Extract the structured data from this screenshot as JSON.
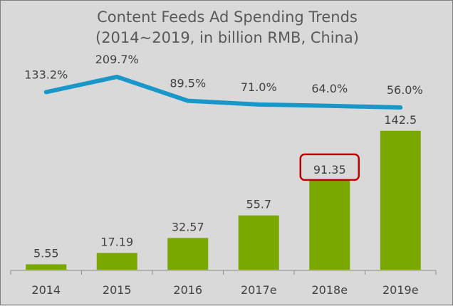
{
  "chart_data": {
    "type": "bar+line",
    "title": "Content Feeds Ad Spending Trends",
    "subtitle": "(2014~2019, in billion RMB, China)",
    "categories": [
      "2014",
      "2015",
      "2016",
      "2017e",
      "2018e",
      "2019e"
    ],
    "series": [
      {
        "type": "bar",
        "values": [
          5.55,
          17.19,
          32.57,
          55.7,
          91.35,
          142.5
        ],
        "labels": [
          "5.55",
          "17.19",
          "32.57",
          "55.7",
          "91.35",
          "142.5"
        ],
        "color": "#7aa800"
      },
      {
        "type": "line",
        "values": [
          133.2,
          209.7,
          89.5,
          71.0,
          64.0,
          56.0
        ],
        "labels": [
          "133.2%",
          "209.7%",
          "89.5%",
          "71.0%",
          "64.0%",
          "56.0%"
        ],
        "color": "#1a97c9"
      }
    ],
    "highlight": {
      "category": "2018e",
      "color": "#c00000"
    },
    "grid": false,
    "legend": "none"
  }
}
